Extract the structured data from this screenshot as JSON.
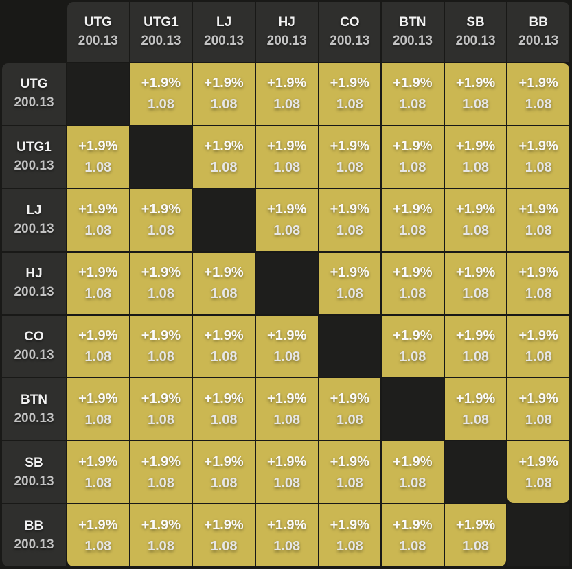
{
  "matrix": {
    "title": "position-matchup-matrix",
    "column_headers": [
      {
        "position": "UTG",
        "stack": "200.13"
      },
      {
        "position": "UTG1",
        "stack": "200.13"
      },
      {
        "position": "LJ",
        "stack": "200.13"
      },
      {
        "position": "HJ",
        "stack": "200.13"
      },
      {
        "position": "CO",
        "stack": "200.13"
      },
      {
        "position": "BTN",
        "stack": "200.13"
      },
      {
        "position": "SB",
        "stack": "200.13"
      },
      {
        "position": "BB",
        "stack": "200.13"
      }
    ],
    "row_headers": [
      {
        "position": "UTG",
        "stack": "200.13"
      },
      {
        "position": "UTG1",
        "stack": "200.13"
      },
      {
        "position": "LJ",
        "stack": "200.13"
      },
      {
        "position": "HJ",
        "stack": "200.13"
      },
      {
        "position": "CO",
        "stack": "200.13"
      },
      {
        "position": "BTN",
        "stack": "200.13"
      },
      {
        "position": "SB",
        "stack": "200.13"
      },
      {
        "position": "BB",
        "stack": "200.13"
      }
    ],
    "cells": [
      [
        null,
        {
          "pct": "+1.9%",
          "val": "1.08"
        },
        {
          "pct": "+1.9%",
          "val": "1.08"
        },
        {
          "pct": "+1.9%",
          "val": "1.08"
        },
        {
          "pct": "+1.9%",
          "val": "1.08"
        },
        {
          "pct": "+1.9%",
          "val": "1.08"
        },
        {
          "pct": "+1.9%",
          "val": "1.08"
        },
        {
          "pct": "+1.9%",
          "val": "1.08"
        }
      ],
      [
        {
          "pct": "+1.9%",
          "val": "1.08"
        },
        null,
        {
          "pct": "+1.9%",
          "val": "1.08"
        },
        {
          "pct": "+1.9%",
          "val": "1.08"
        },
        {
          "pct": "+1.9%",
          "val": "1.08"
        },
        {
          "pct": "+1.9%",
          "val": "1.08"
        },
        {
          "pct": "+1.9%",
          "val": "1.08"
        },
        {
          "pct": "+1.9%",
          "val": "1.08"
        }
      ],
      [
        {
          "pct": "+1.9%",
          "val": "1.08"
        },
        {
          "pct": "+1.9%",
          "val": "1.08"
        },
        null,
        {
          "pct": "+1.9%",
          "val": "1.08"
        },
        {
          "pct": "+1.9%",
          "val": "1.08"
        },
        {
          "pct": "+1.9%",
          "val": "1.08"
        },
        {
          "pct": "+1.9%",
          "val": "1.08"
        },
        {
          "pct": "+1.9%",
          "val": "1.08"
        }
      ],
      [
        {
          "pct": "+1.9%",
          "val": "1.08"
        },
        {
          "pct": "+1.9%",
          "val": "1.08"
        },
        {
          "pct": "+1.9%",
          "val": "1.08"
        },
        null,
        {
          "pct": "+1.9%",
          "val": "1.08"
        },
        {
          "pct": "+1.9%",
          "val": "1.08"
        },
        {
          "pct": "+1.9%",
          "val": "1.08"
        },
        {
          "pct": "+1.9%",
          "val": "1.08"
        }
      ],
      [
        {
          "pct": "+1.9%",
          "val": "1.08"
        },
        {
          "pct": "+1.9%",
          "val": "1.08"
        },
        {
          "pct": "+1.9%",
          "val": "1.08"
        },
        {
          "pct": "+1.9%",
          "val": "1.08"
        },
        null,
        {
          "pct": "+1.9%",
          "val": "1.08"
        },
        {
          "pct": "+1.9%",
          "val": "1.08"
        },
        {
          "pct": "+1.9%",
          "val": "1.08"
        }
      ],
      [
        {
          "pct": "+1.9%",
          "val": "1.08"
        },
        {
          "pct": "+1.9%",
          "val": "1.08"
        },
        {
          "pct": "+1.9%",
          "val": "1.08"
        },
        {
          "pct": "+1.9%",
          "val": "1.08"
        },
        {
          "pct": "+1.9%",
          "val": "1.08"
        },
        null,
        {
          "pct": "+1.9%",
          "val": "1.08"
        },
        {
          "pct": "+1.9%",
          "val": "1.08"
        }
      ],
      [
        {
          "pct": "+1.9%",
          "val": "1.08"
        },
        {
          "pct": "+1.9%",
          "val": "1.08"
        },
        {
          "pct": "+1.9%",
          "val": "1.08"
        },
        {
          "pct": "+1.9%",
          "val": "1.08"
        },
        {
          "pct": "+1.9%",
          "val": "1.08"
        },
        {
          "pct": "+1.9%",
          "val": "1.08"
        },
        null,
        {
          "pct": "+1.9%",
          "val": "1.08"
        }
      ],
      [
        {
          "pct": "+1.9%",
          "val": "1.08"
        },
        {
          "pct": "+1.9%",
          "val": "1.08"
        },
        {
          "pct": "+1.9%",
          "val": "1.08"
        },
        {
          "pct": "+1.9%",
          "val": "1.08"
        },
        {
          "pct": "+1.9%",
          "val": "1.08"
        },
        {
          "pct": "+1.9%",
          "val": "1.08"
        },
        {
          "pct": "+1.9%",
          "val": "1.08"
        },
        null
      ]
    ]
  },
  "colors": {
    "background": "#191917",
    "header_bg": "#2f2f2d",
    "cell_bg": "#cbb752",
    "diagonal_bg": "#1e1e1c",
    "position_text": "#f2f2f2",
    "stack_text": "#c3c3c3",
    "cell_text": "#fafafa"
  }
}
